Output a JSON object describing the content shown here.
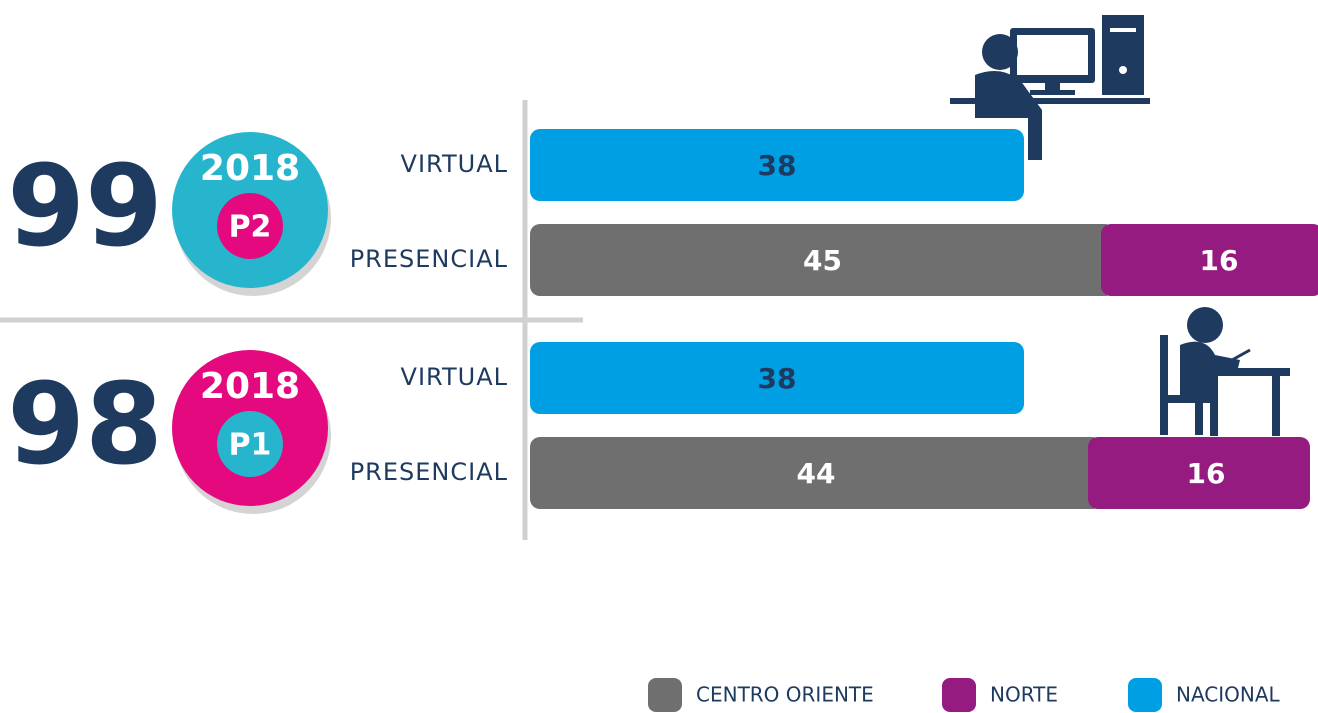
{
  "chart_data": {
    "type": "stacked-bar-h",
    "categories": [
      "VIRTUAL",
      "PRESENCIAL",
      "VIRTUAL",
      "PRESENCIAL"
    ],
    "series": [
      {
        "name": "CENTRO ORIENTE",
        "color": "#6f6f6f",
        "values": [
          null,
          45,
          null,
          44
        ]
      },
      {
        "name": "NORTE",
        "color": "#951b81",
        "values": [
          null,
          16,
          null,
          16
        ]
      },
      {
        "name": "NACIONAL",
        "color": "#009fe3",
        "values": [
          38,
          null,
          38,
          null
        ]
      }
    ],
    "groups": [
      {
        "total": 99,
        "year": "2018",
        "period": "P2",
        "color": "#27b5ce",
        "period_color": "#e5097f"
      },
      {
        "total": 98,
        "year": "2018",
        "period": "P1",
        "color": "#e5097f",
        "period_color": "#27b5ce"
      }
    ]
  }
}
